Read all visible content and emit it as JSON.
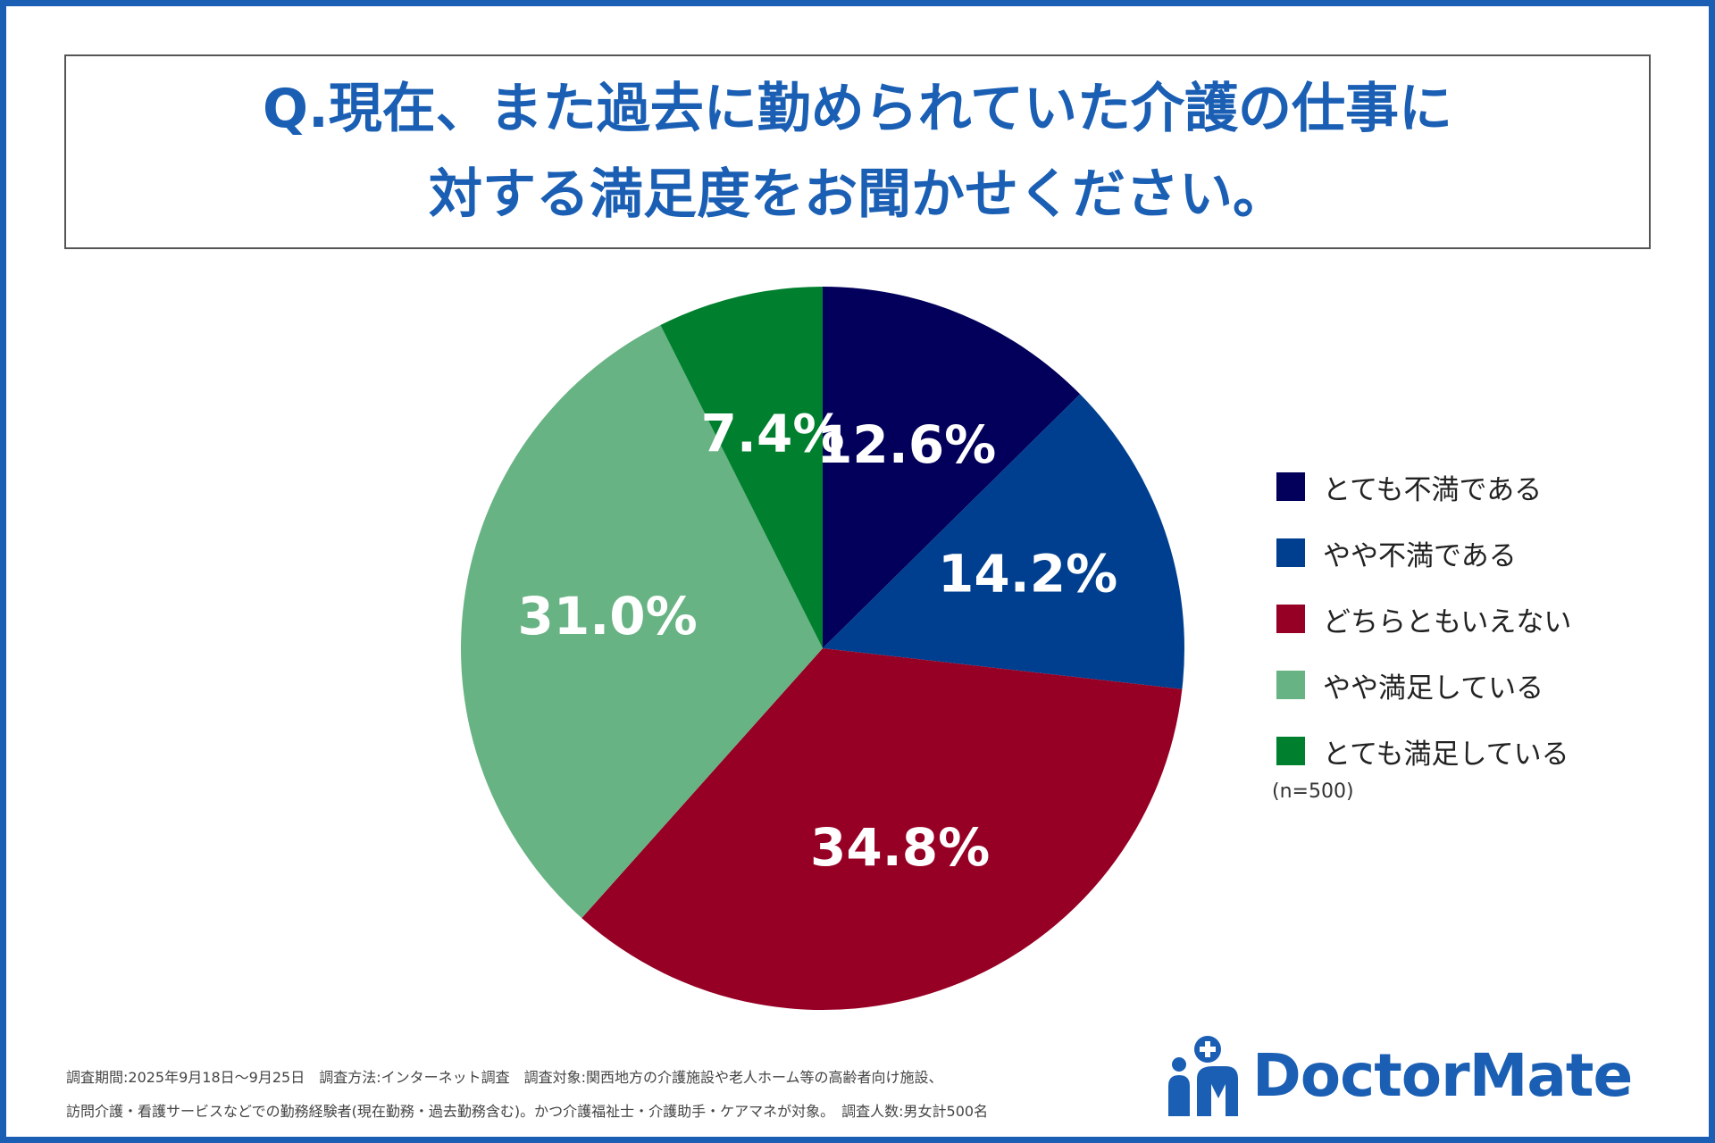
{
  "title": {
    "line1": "Q.現在、また過去に勤められていた介護の仕事に",
    "line2": "対する満足度をお聞かせください。"
  },
  "chart_data": {
    "type": "pie",
    "categories": [
      "とても不満である",
      "やや不満である",
      "どちらともいえない",
      "やや満足している",
      "とても満足している"
    ],
    "values": [
      12.6,
      14.2,
      34.8,
      31.0,
      7.4
    ],
    "labels": [
      "12.6%",
      "14.2%",
      "34.8%",
      "31.0%",
      "7.4%"
    ],
    "colors": [
      "#02005a",
      "#003f8f",
      "#970025",
      "#68b383",
      "#00802f"
    ],
    "legend_position": "right",
    "sample_note": "(n=500)"
  },
  "footnote": {
    "line1": "調査期間:2025年9月18日〜9月25日　調査方法:インターネット調査　調査対象:関西地方の介護施設や老人ホーム等の高齢者向け施設、",
    "line2": "訪問介護・看護サービスなどでの勤務経験者(現在勤務・過去勤務含む)。かつ介護福祉士・介護助手・ケアマネが対象。　調査人数:男女計500名"
  },
  "logo": {
    "text": "DoctorMate",
    "icon": "doctormate-logo-icon",
    "color": "#1a5fb4"
  }
}
